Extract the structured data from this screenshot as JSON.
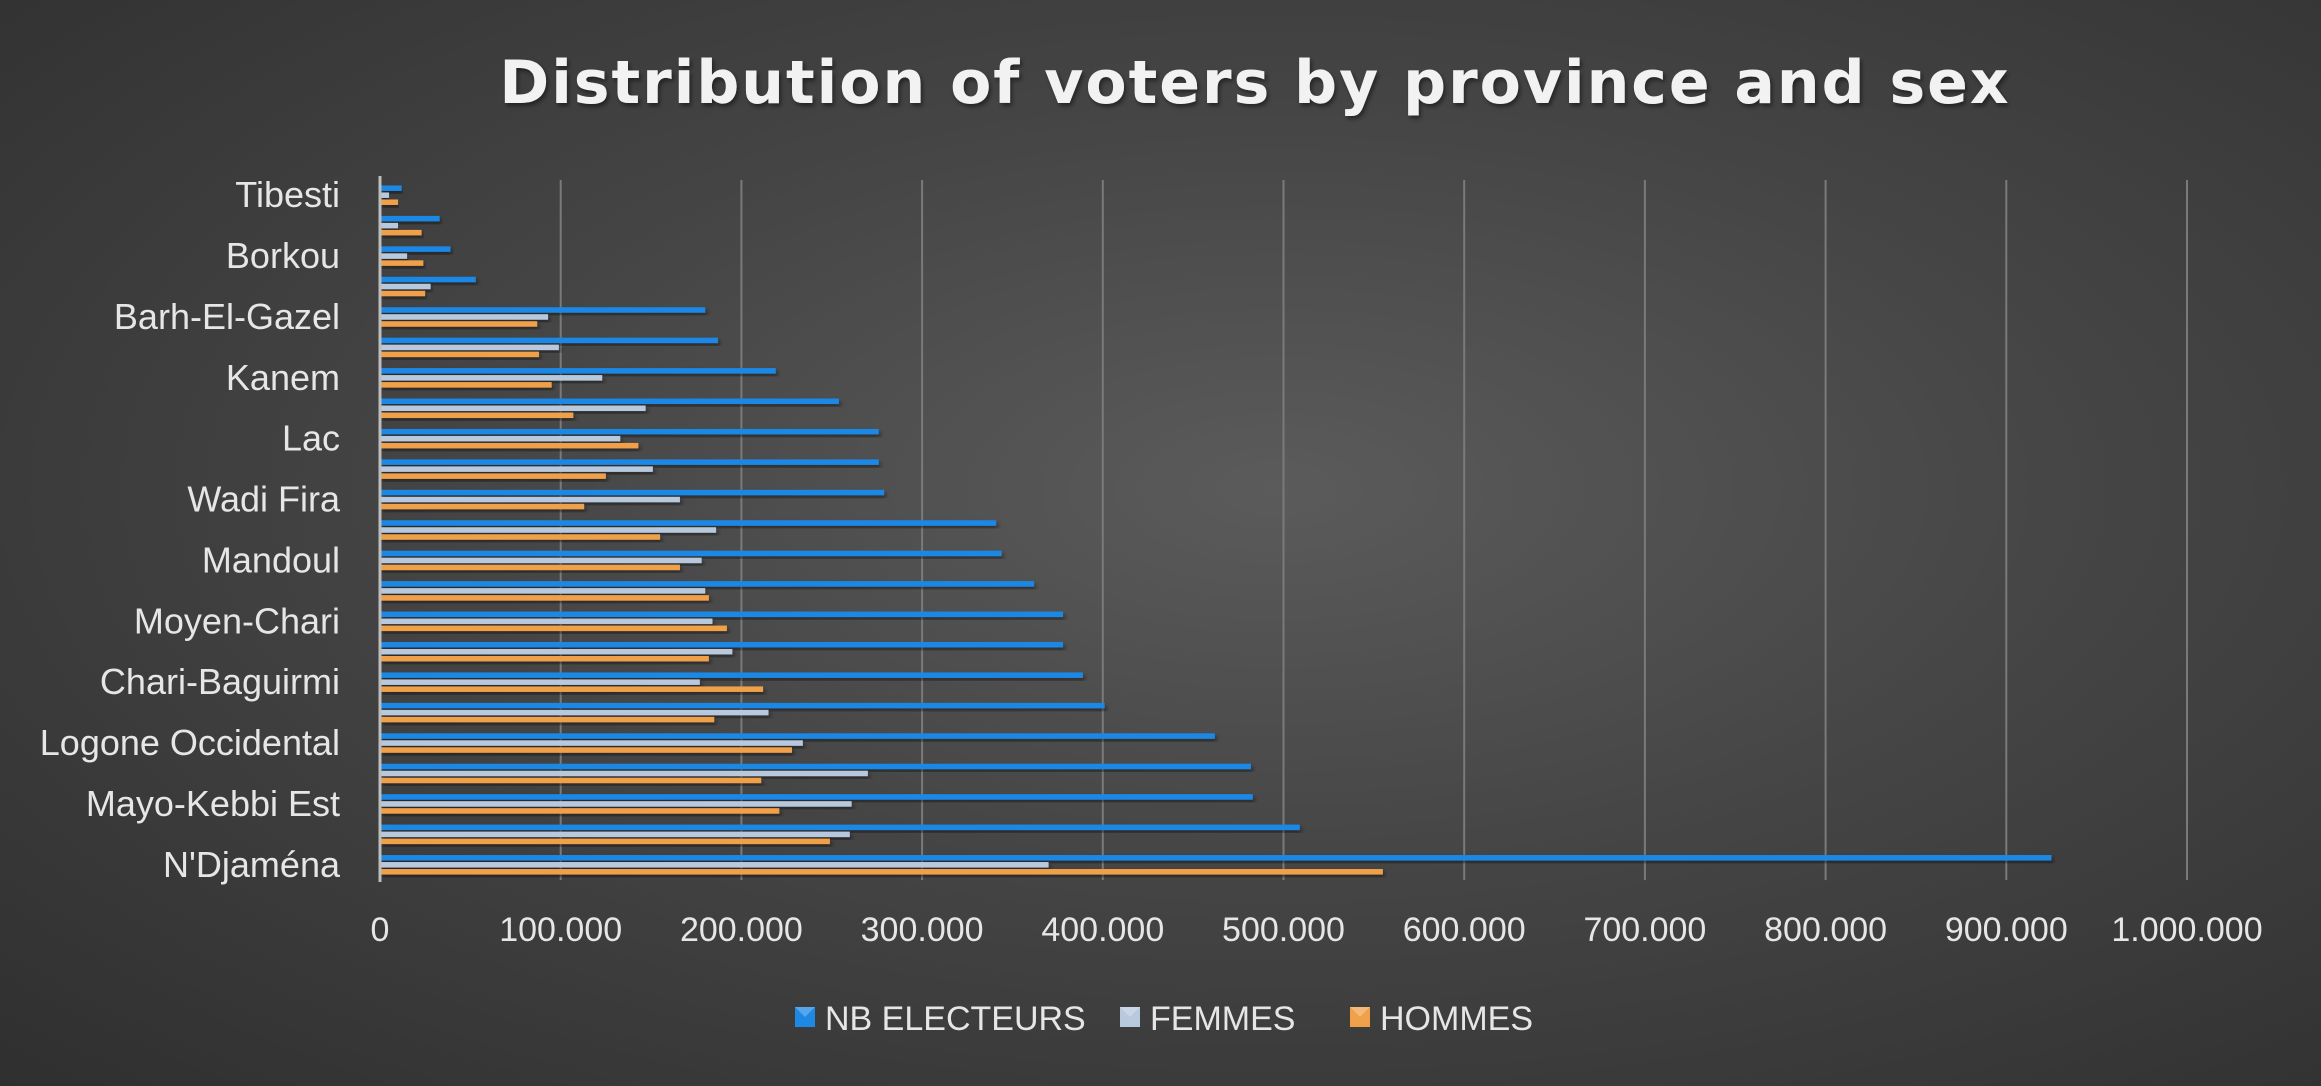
{
  "chart_data": {
    "type": "bar",
    "orientation": "horizontal",
    "title": "Distribution of voters by province and sex",
    "xlabel": "",
    "ylabel": "",
    "xlim": [
      0,
      1000000
    ],
    "x_ticks": [
      "0",
      "100.000",
      "200.000",
      "300.000",
      "400.000",
      "500.000",
      "600.000",
      "700.000",
      "800.000",
      "900.000",
      "1.000.000"
    ],
    "grid": "vertical",
    "legend_position": "bottom",
    "categories": [
      "N'Djaména",
      "",
      "Mayo-Kebbi Est",
      "",
      "Logone Occidental",
      "",
      "Chari-Baguirmi",
      "",
      "Moyen-Chari",
      "",
      "Mandoul",
      "",
      "Wadi Fira",
      "",
      "Lac",
      "",
      "Kanem",
      "",
      "Barh-El-Gazel",
      "",
      "Borkou",
      "",
      "Tibesti"
    ],
    "series": [
      {
        "name": "NB ELECTEURS",
        "color": "#1e88e5",
        "values": [
          925000,
          509000,
          483000,
          482000,
          462000,
          401000,
          389000,
          378000,
          378000,
          362000,
          344000,
          341000,
          279000,
          276000,
          276000,
          254000,
          219000,
          187000,
          180000,
          53000,
          39000,
          33000,
          12000
        ]
      },
      {
        "name": "FEMMES",
        "color": "#b8c9dd",
        "values": [
          370000,
          260000,
          261000,
          270000,
          234000,
          215000,
          177000,
          195000,
          184000,
          180000,
          178000,
          186000,
          166000,
          151000,
          133000,
          147000,
          123000,
          99000,
          93000,
          28000,
          15000,
          10000,
          5000
        ]
      },
      {
        "name": "HOMMES",
        "color": "#f0a04a",
        "values": [
          555000,
          249000,
          221000,
          211000,
          228000,
          185000,
          212000,
          182000,
          192000,
          182000,
          166000,
          155000,
          113000,
          125000,
          143000,
          107000,
          95000,
          88000,
          87000,
          25000,
          24000,
          23000,
          10000
        ]
      }
    ]
  }
}
